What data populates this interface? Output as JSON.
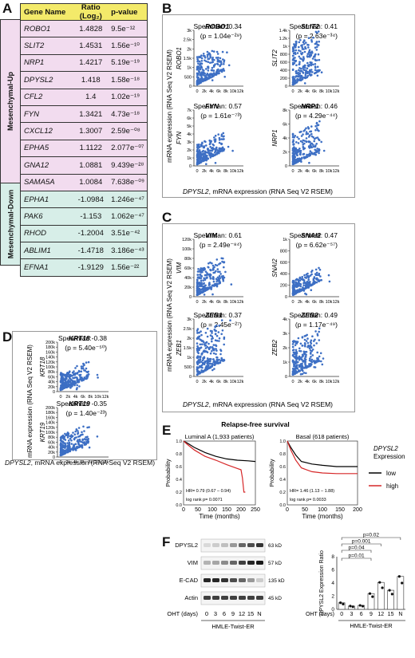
{
  "panels": {
    "A": "A",
    "B": "B",
    "C": "C",
    "D": "D",
    "E": "E",
    "F": "F"
  },
  "tableA": {
    "headers": [
      "Gene Name",
      "Ratio (Log₂)",
      "p-value"
    ],
    "up_label": "Mesenchymal-Up",
    "down_label": "Mesenchymal-Down",
    "up_rows": [
      [
        "ROBO1",
        "1.4828",
        "9.5e⁻¹²"
      ],
      [
        "SLIT2",
        "1.4531",
        "1.56e⁻¹⁰"
      ],
      [
        "NRP1",
        "1.4217",
        "5.19e⁻¹⁹"
      ],
      [
        "DPYSL2",
        "1.418",
        "1.58e⁻¹⁸"
      ],
      [
        "CFL2",
        "1.4",
        "1.02e⁻¹⁹"
      ],
      [
        "FYN",
        "1.3421",
        "4.73e⁻¹⁸"
      ],
      [
        "CXCL12",
        "1.3007",
        "2.59e⁻⁰⁸"
      ],
      [
        "EPHA5",
        "1.1122",
        "2.077e⁻⁰⁷"
      ],
      [
        "GNA12",
        "1.0881",
        "9.439e⁻²⁸"
      ],
      [
        "SAMA5A",
        "1.0084",
        "7.638e⁻⁰⁹"
      ]
    ],
    "down_rows": [
      [
        "EPHA1",
        "-1.0984",
        "1.246e⁻⁴⁷"
      ],
      [
        "PAK6",
        "-1.153",
        "1.062e⁻⁴⁷"
      ],
      [
        "RHOD",
        "-1.2004",
        "3.51e⁻⁴²"
      ],
      [
        "ABLIM1",
        "-1.4718",
        "3.186e⁻⁴³"
      ],
      [
        "EFNA1",
        "-1.9129",
        "1.56e⁻²²"
      ]
    ]
  },
  "scatter_common": {
    "x_ticks": [
      "0",
      "2k",
      "4k",
      "6k",
      "8k",
      "10k",
      "12k"
    ],
    "y_axis_label": "mRNA expression (RNA Seq V2 RSEM)",
    "x_axis_label_gene": "DPYSL2",
    "x_axis_label_rest": ", mRNA expression (RNA Seq V2 RSEM)"
  },
  "scatterB": [
    {
      "gene": "ROBO1",
      "spearman": "Spearman: 0.34",
      "p": "(p = 1.04e⁻²⁹)",
      "yticks": [
        "0",
        "500",
        "1k",
        "1.5k",
        "2k",
        "2.5k",
        "3k"
      ]
    },
    {
      "gene": "SLIT2",
      "spearman": "Spearman: 0.41",
      "p": "(p = 2.63e⁻³⁴)",
      "yticks": [
        "0",
        "200",
        "400",
        "600",
        "800",
        "1k",
        "1.2k",
        "1.4k"
      ]
    },
    {
      "gene": "FYN",
      "spearman": "Spearman: 0.57",
      "p": "(p = 1.61e⁻⁷³)",
      "yticks": [
        "0",
        "1k",
        "2k",
        "3k",
        "4k",
        "5k",
        "6k",
        "7k"
      ]
    },
    {
      "gene": "NRP1",
      "spearman": "Spearman: 0.46",
      "p": "(p = 4.29e⁻⁴⁴)",
      "yticks": [
        "0",
        "2k",
        "4k",
        "6k",
        "8k"
      ]
    }
  ],
  "scatterC": [
    {
      "gene": "VIM",
      "spearman": "Spearman: 0.61",
      "p": "(p = 2.49e⁻⁸⁴)",
      "yticks": [
        "0",
        "20k",
        "40k",
        "60k",
        "80k",
        "100k",
        "120k"
      ]
    },
    {
      "gene": "SNAI2",
      "spearman": "Spearman: 0.47",
      "p": "(p = 6.62e⁻⁵⁷)",
      "yticks": [
        "0",
        "200",
        "400",
        "600",
        "800",
        "1k"
      ]
    },
    {
      "gene": "ZEB1",
      "spearman": "Spearman: 0.37",
      "p": "(p = 2.45e⁻²⁷)",
      "yticks": [
        "0",
        "500",
        "1k",
        "1.5k",
        "2k",
        "2.5k",
        "3k"
      ]
    },
    {
      "gene": "ZEB2",
      "spearman": "Spearman: 0.49",
      "p": "(p = 1.17e⁻⁴⁹)",
      "yticks": [
        "0",
        "1k",
        "2k",
        "3k",
        "4k"
      ]
    }
  ],
  "scatterD": [
    {
      "gene": "KRT18",
      "spearman": "Spearman:-0.38",
      "p": "(p = 5.40e⁻⁵⁰)",
      "yticks": [
        "0",
        "20k",
        "40k",
        "60k",
        "80k",
        "100k",
        "120k",
        "140k",
        "160k",
        "180k",
        "200k"
      ]
    },
    {
      "gene": "KRT19",
      "spearman": "Spearman: -0.35",
      "p": "(p = 1.40e⁻²³)",
      "yticks": [
        "0",
        "20k",
        "40k",
        "60k",
        "80k",
        "100k",
        "120k",
        "140k",
        "160k",
        "180k",
        "200k"
      ]
    }
  ],
  "survival": {
    "title": "Relapse-free survival",
    "y_label": "Probability",
    "x_label": "Time (months)",
    "legend_title_gene": "DPYSL2",
    "legend_title_rest": "Expression",
    "legend_low": "low",
    "legend_high": "high",
    "colors": {
      "low": "#000000",
      "high": "#d62728"
    },
    "yticks": [
      "0.0",
      "0.2",
      "0.4",
      "0.6",
      "0.8",
      "1.0"
    ],
    "luminal": {
      "title": "Luminal A (1,933 patients)",
      "hr": "HR= 0.79 (0.67 – 0.94)",
      "logrank": "log rank p= 0.0071",
      "xticks": [
        "0",
        "50",
        "100",
        "150",
        "200",
        "250"
      ]
    },
    "basal": {
      "title": "Basal (618 patients)",
      "hr": "HR= 1.46 (1.13 – 1.88)",
      "logrank": "log rank p= 0.0033",
      "xticks": [
        "0",
        "50",
        "100",
        "150",
        "200"
      ]
    }
  },
  "blot": {
    "rows": [
      {
        "label": "DPYSL2",
        "kd": "63 kD"
      },
      {
        "label": "VIM",
        "kd": "57 kD"
      },
      {
        "label": "E-CAD",
        "kd": "135 kD"
      },
      {
        "label": "Actin",
        "kd": "45 kD"
      }
    ],
    "oht_label": "OHT (days)",
    "lanes": [
      "0",
      "3",
      "6",
      "9",
      "12",
      "15",
      "N"
    ],
    "cell_line": "HMLE-Twist-ER"
  },
  "chart_data": {
    "type": "bar",
    "categories": [
      "0",
      "3",
      "6",
      "9",
      "12",
      "15",
      "N"
    ],
    "values": [
      1.0,
      0.5,
      0.6,
      2.4,
      4.1,
      2.9,
      5.0
    ],
    "ylabel": "DPYSL2 Expression Ratio",
    "xlabel": "OHT (days)",
    "ylim": [
      0,
      8
    ],
    "yticks": [
      "0",
      "2",
      "4",
      "6",
      "8"
    ],
    "significance": [
      "p=0.02",
      "p=0.001",
      "p=0.04",
      "p=0.01"
    ],
    "group_label": "HMLE-Twist-ER"
  }
}
